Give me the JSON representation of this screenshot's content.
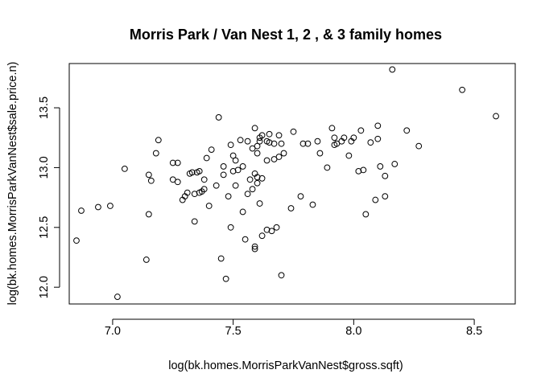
{
  "chart_data": {
    "type": "scatter",
    "title": "Morris Park / Van Nest 1, 2 , & 3 family homes",
    "xlabel": "log(bk.homes.MorrisParkVanNest$gross.sqft)",
    "ylabel": "log(bk.homes.MorrisParkVanNest$sale.price.n)",
    "xlim": [
      6.82,
      8.67
    ],
    "ylim": [
      11.86,
      13.87
    ],
    "xticks": [
      7.0,
      7.5,
      8.0,
      8.5
    ],
    "xtick_labels": [
      "7.0",
      "7.5",
      "8.0",
      "8.5"
    ],
    "yticks": [
      12.0,
      12.5,
      13.0,
      13.5
    ],
    "ytick_labels": [
      "12.0",
      "12.5",
      "13.0",
      "13.5"
    ],
    "grid": false,
    "marker": "open-circle",
    "points": [
      [
        6.85,
        12.39
      ],
      [
        6.87,
        12.64
      ],
      [
        6.94,
        12.67
      ],
      [
        6.99,
        12.68
      ],
      [
        7.02,
        11.92
      ],
      [
        7.05,
        12.99
      ],
      [
        7.14,
        12.23
      ],
      [
        7.15,
        12.61
      ],
      [
        7.15,
        12.94
      ],
      [
        7.16,
        12.89
      ],
      [
        7.18,
        13.12
      ],
      [
        7.19,
        13.23
      ],
      [
        7.25,
        12.9
      ],
      [
        7.25,
        13.04
      ],
      [
        7.27,
        12.88
      ],
      [
        7.27,
        13.04
      ],
      [
        7.29,
        12.73
      ],
      [
        7.3,
        12.76
      ],
      [
        7.31,
        12.79
      ],
      [
        7.32,
        12.95
      ],
      [
        7.33,
        12.96
      ],
      [
        7.34,
        12.78
      ],
      [
        7.34,
        12.55
      ],
      [
        7.35,
        12.96
      ],
      [
        7.36,
        12.79
      ],
      [
        7.36,
        12.97
      ],
      [
        7.37,
        12.8
      ],
      [
        7.38,
        12.9
      ],
      [
        7.38,
        12.82
      ],
      [
        7.39,
        13.08
      ],
      [
        7.4,
        12.68
      ],
      [
        7.41,
        13.15
      ],
      [
        7.43,
        12.85
      ],
      [
        7.44,
        13.42
      ],
      [
        7.45,
        12.24
      ],
      [
        7.46,
        12.94
      ],
      [
        7.46,
        13.01
      ],
      [
        7.47,
        12.07
      ],
      [
        7.48,
        12.76
      ],
      [
        7.49,
        12.5
      ],
      [
        7.49,
        13.19
      ],
      [
        7.5,
        13.1
      ],
      [
        7.5,
        12.97
      ],
      [
        7.51,
        13.06
      ],
      [
        7.51,
        12.85
      ],
      [
        7.52,
        12.98
      ],
      [
        7.53,
        13.23
      ],
      [
        7.54,
        12.63
      ],
      [
        7.54,
        13.01
      ],
      [
        7.55,
        12.4
      ],
      [
        7.56,
        13.22
      ],
      [
        7.56,
        12.78
      ],
      [
        7.57,
        12.9
      ],
      [
        7.58,
        12.82
      ],
      [
        7.58,
        13.16
      ],
      [
        7.59,
        12.34
      ],
      [
        7.59,
        12.32
      ],
      [
        7.59,
        12.95
      ],
      [
        7.59,
        13.33
      ],
      [
        7.6,
        12.87
      ],
      [
        7.6,
        13.12
      ],
      [
        7.6,
        13.18
      ],
      [
        7.6,
        12.92
      ],
      [
        7.61,
        13.22
      ],
      [
        7.61,
        12.7
      ],
      [
        7.61,
        13.25
      ],
      [
        7.62,
        12.43
      ],
      [
        7.62,
        12.91
      ],
      [
        7.62,
        13.27
      ],
      [
        7.64,
        13.22
      ],
      [
        7.64,
        12.48
      ],
      [
        7.64,
        13.06
      ],
      [
        7.65,
        13.28
      ],
      [
        7.65,
        13.21
      ],
      [
        7.66,
        12.47
      ],
      [
        7.67,
        13.2
      ],
      [
        7.67,
        13.07
      ],
      [
        7.68,
        12.5
      ],
      [
        7.69,
        13.27
      ],
      [
        7.69,
        13.09
      ],
      [
        7.7,
        12.1
      ],
      [
        7.7,
        13.2
      ],
      [
        7.71,
        13.12
      ],
      [
        7.74,
        12.66
      ],
      [
        7.75,
        13.3
      ],
      [
        7.78,
        12.76
      ],
      [
        7.79,
        13.2
      ],
      [
        7.81,
        13.2
      ],
      [
        7.83,
        12.69
      ],
      [
        7.85,
        13.22
      ],
      [
        7.86,
        13.12
      ],
      [
        7.89,
        13.0
      ],
      [
        7.91,
        13.33
      ],
      [
        7.92,
        13.25
      ],
      [
        7.92,
        13.19
      ],
      [
        7.93,
        13.2
      ],
      [
        7.95,
        13.22
      ],
      [
        7.96,
        13.25
      ],
      [
        7.98,
        13.1
      ],
      [
        7.99,
        13.22
      ],
      [
        8.0,
        13.25
      ],
      [
        8.02,
        12.97
      ],
      [
        8.03,
        13.31
      ],
      [
        8.04,
        12.98
      ],
      [
        8.05,
        12.61
      ],
      [
        8.07,
        13.21
      ],
      [
        8.09,
        12.73
      ],
      [
        8.1,
        13.24
      ],
      [
        8.1,
        13.35
      ],
      [
        8.11,
        13.01
      ],
      [
        8.13,
        12.93
      ],
      [
        8.13,
        12.76
      ],
      [
        8.16,
        13.82
      ],
      [
        8.17,
        13.03
      ],
      [
        8.22,
        13.31
      ],
      [
        8.27,
        13.18
      ],
      [
        8.45,
        13.65
      ],
      [
        8.59,
        13.43
      ]
    ]
  }
}
